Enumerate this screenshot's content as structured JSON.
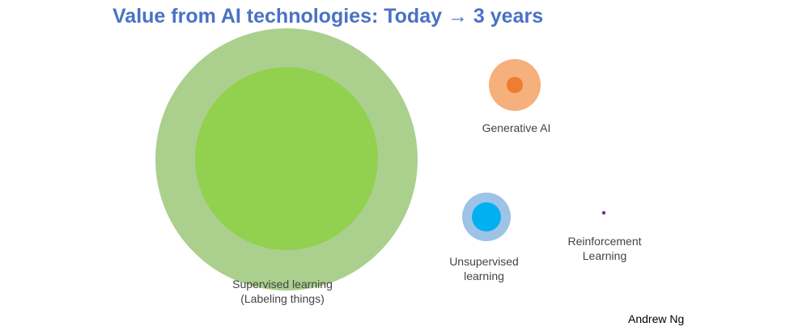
{
  "title": "Value from AI technologies: Today → 3 years",
  "author": "Andrew Ng",
  "colors": {
    "title": "#4a72c4",
    "supervised_future": "#abd08e",
    "supervised_today": "#92d050",
    "generative_future": "#f5b07c",
    "generative_today": "#ed7d31",
    "unsupervised_future": "#9dc3e6",
    "unsupervised_today": "#00b0f0",
    "reinforcement": "#7030a0"
  },
  "bubbles": [
    {
      "name": "supervised-learning",
      "label_line1": "Supervised learning",
      "label_line2": "(Labeling things)"
    },
    {
      "name": "generative-ai",
      "label_line1": "Generative AI",
      "label_line2": ""
    },
    {
      "name": "unsupervised-learning",
      "label_line1": "Unsupervised",
      "label_line2": "learning"
    },
    {
      "name": "reinforcement-learning",
      "label_line1": "Reinforcement",
      "label_line2": "Learning"
    }
  ]
}
